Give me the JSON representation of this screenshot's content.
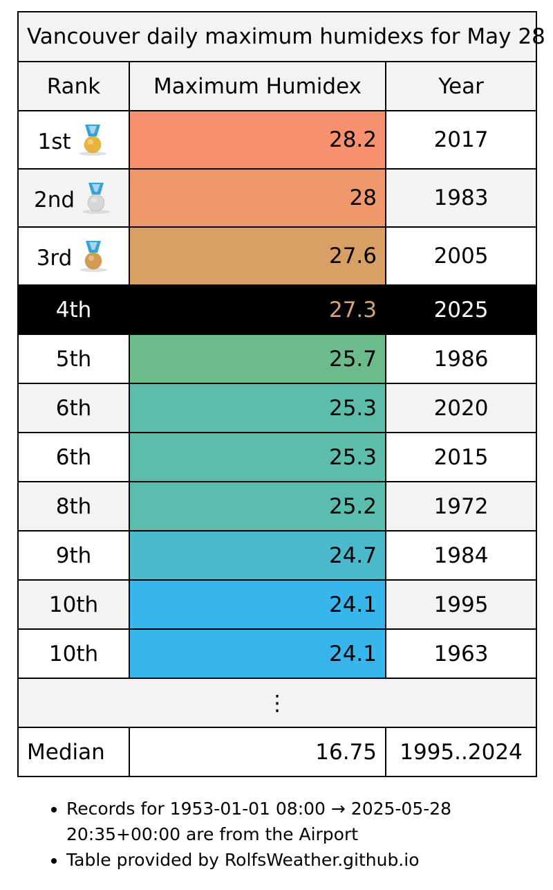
{
  "table": {
    "caption": "Vancouver daily maximum humidexs for May 28",
    "headers": {
      "rank": "Rank",
      "value": "Maximum Humidex",
      "year": "Year"
    },
    "rows": [
      {
        "rank": "1st",
        "value": "28.2",
        "year": "2017",
        "color": "#f6906e",
        "medal": "gold"
      },
      {
        "rank": "2nd",
        "value": "28",
        "year": "1983",
        "color": "#ee986c",
        "medal": "silver"
      },
      {
        "rank": "3rd",
        "value": "27.6",
        "year": "2005",
        "color": "#d9a066",
        "medal": "bronze"
      },
      {
        "rank": "4th",
        "value": "27.3",
        "year": "2025",
        "current": true
      },
      {
        "rank": "5th",
        "value": "25.7",
        "year": "1986",
        "color": "#6bbb8c"
      },
      {
        "rank": "6th",
        "value": "25.3",
        "year": "2020",
        "color": "#5cbdab"
      },
      {
        "rank": "6th",
        "value": "25.3",
        "year": "2015",
        "color": "#5cbdab"
      },
      {
        "rank": "8th",
        "value": "25.2",
        "year": "1972",
        "color": "#5bbdad"
      },
      {
        "rank": "9th",
        "value": "24.7",
        "year": "1984",
        "color": "#4ab9cc"
      },
      {
        "rank": "10th",
        "value": "24.1",
        "year": "1995",
        "color": "#38b6ec"
      },
      {
        "rank": "10th",
        "value": "24.1",
        "year": "1963",
        "color": "#38b6ec"
      }
    ],
    "ellipsis": "⋮",
    "median": {
      "label": "Median",
      "value": "16.75",
      "range": "1995..2024"
    }
  },
  "notes": [
    "Records for 1953-01-01 08:00 → 2025-05-28 20:35+00:00 are from the Airport",
    "Table provided by RolfsWeather.github.io"
  ],
  "colors": {
    "gold_medal": "#e8b53a",
    "silver_medal": "#d6d6d6",
    "bronze_medal": "#d49a55",
    "ribbon": "#3aa0d8",
    "current_value_text": "#d2a679"
  }
}
